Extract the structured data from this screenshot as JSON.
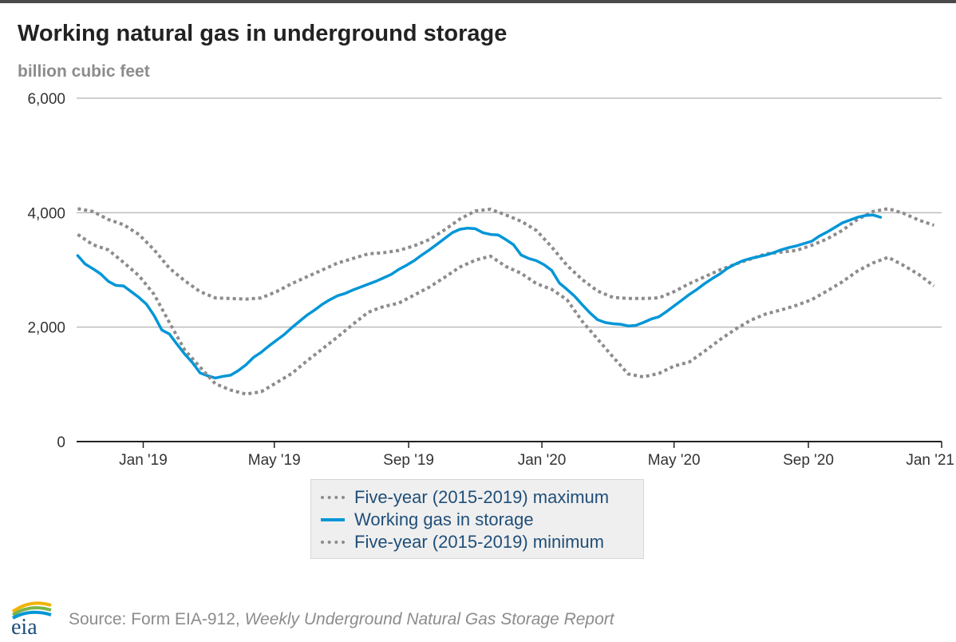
{
  "title": "Working natural gas in underground storage",
  "subtitle": "billion cubic feet",
  "legend": {
    "max_label": "Five-year (2015-2019) maximum",
    "working_label": "Working gas in storage",
    "min_label": "Five-year (2015-2019) minimum"
  },
  "source": {
    "prefix": "Source: Form EIA-912, ",
    "report": "Weekly Underground Natural Gas Storage Report"
  },
  "colors": {
    "working": "#0096d7",
    "range": "#8c8c8c",
    "grid": "#bdbdbd",
    "axis": "#222222"
  },
  "chart_data": {
    "type": "line",
    "title": "Working natural gas in underground storage",
    "ylabel": "billion cubic feet",
    "xlabel": "",
    "ylim": [
      0,
      6000
    ],
    "xlim": [
      "2018-11-01",
      "2021-01-01"
    ],
    "y_ticks": [
      0,
      2000,
      4000,
      6000
    ],
    "y_tick_labels": [
      "0",
      "2,000",
      "4,000",
      "6,000"
    ],
    "x_ticks": [
      "2019-01-01",
      "2019-05-01",
      "2019-09-01",
      "2020-01-01",
      "2020-05-01",
      "2020-09-01",
      "2021-01-01"
    ],
    "x_tick_labels": [
      "Jan '19",
      "May '19",
      "Sep '19",
      "Jan '20",
      "May '20",
      "Sep '20",
      "Jan '21"
    ],
    "grid": "horizontal",
    "legend_position": "bottom-center",
    "series": [
      {
        "name": "Five-year (2015-2019) maximum",
        "style": "dotted",
        "points": [
          [
            "2018-11-02",
            4070
          ],
          [
            "2018-11-16",
            4020
          ],
          [
            "2018-11-30",
            3880
          ],
          [
            "2018-12-14",
            3790
          ],
          [
            "2018-12-28",
            3620
          ],
          [
            "2019-01-11",
            3350
          ],
          [
            "2019-01-25",
            3030
          ],
          [
            "2019-02-08",
            2810
          ],
          [
            "2019-02-22",
            2620
          ],
          [
            "2019-03-08",
            2510
          ],
          [
            "2019-03-22",
            2500
          ],
          [
            "2019-04-05",
            2490
          ],
          [
            "2019-04-19",
            2510
          ],
          [
            "2019-05-03",
            2620
          ],
          [
            "2019-05-17",
            2760
          ],
          [
            "2019-05-31",
            2880
          ],
          [
            "2019-06-14",
            3000
          ],
          [
            "2019-06-28",
            3120
          ],
          [
            "2019-07-12",
            3200
          ],
          [
            "2019-07-26",
            3280
          ],
          [
            "2019-08-09",
            3300
          ],
          [
            "2019-08-23",
            3340
          ],
          [
            "2019-09-06",
            3420
          ],
          [
            "2019-09-20",
            3530
          ],
          [
            "2019-10-04",
            3700
          ],
          [
            "2019-10-18",
            3890
          ],
          [
            "2019-11-01",
            4030
          ],
          [
            "2019-11-15",
            4060
          ],
          [
            "2019-11-29",
            3960
          ],
          [
            "2019-12-13",
            3850
          ],
          [
            "2019-12-27",
            3690
          ],
          [
            "2020-01-10",
            3400
          ],
          [
            "2020-01-24",
            3080
          ],
          [
            "2020-02-07",
            2830
          ],
          [
            "2020-02-21",
            2630
          ],
          [
            "2020-03-06",
            2520
          ],
          [
            "2020-03-20",
            2500
          ],
          [
            "2020-04-03",
            2500
          ],
          [
            "2020-04-17",
            2510
          ],
          [
            "2020-05-01",
            2620
          ],
          [
            "2020-05-15",
            2760
          ],
          [
            "2020-05-29",
            2880
          ],
          [
            "2020-06-12",
            3000
          ],
          [
            "2020-06-26",
            3100
          ],
          [
            "2020-07-10",
            3190
          ],
          [
            "2020-07-24",
            3280
          ],
          [
            "2020-08-07",
            3310
          ],
          [
            "2020-08-21",
            3340
          ],
          [
            "2020-09-04",
            3430
          ],
          [
            "2020-09-18",
            3540
          ],
          [
            "2020-10-02",
            3690
          ],
          [
            "2020-10-16",
            3880
          ],
          [
            "2020-10-30",
            4020
          ],
          [
            "2020-11-13",
            4070
          ],
          [
            "2020-11-27",
            3990
          ],
          [
            "2020-12-11",
            3870
          ],
          [
            "2020-12-25",
            3780
          ]
        ]
      },
      {
        "name": "Working gas in storage",
        "style": "solid",
        "points": [
          [
            "2018-11-02",
            3250
          ],
          [
            "2018-11-09",
            3100
          ],
          [
            "2018-11-16",
            3020
          ],
          [
            "2018-11-23",
            2930
          ],
          [
            "2018-11-30",
            2800
          ],
          [
            "2018-12-07",
            2730
          ],
          [
            "2018-12-14",
            2720
          ],
          [
            "2018-12-21",
            2620
          ],
          [
            "2018-12-28",
            2520
          ],
          [
            "2019-01-04",
            2400
          ],
          [
            "2019-01-11",
            2200
          ],
          [
            "2019-01-18",
            1950
          ],
          [
            "2019-01-25",
            1880
          ],
          [
            "2019-02-01",
            1700
          ],
          [
            "2019-02-08",
            1530
          ],
          [
            "2019-02-15",
            1380
          ],
          [
            "2019-02-22",
            1200
          ],
          [
            "2019-03-01",
            1150
          ],
          [
            "2019-03-08",
            1110
          ],
          [
            "2019-03-15",
            1140
          ],
          [
            "2019-03-22",
            1160
          ],
          [
            "2019-03-29",
            1240
          ],
          [
            "2019-04-05",
            1340
          ],
          [
            "2019-04-12",
            1470
          ],
          [
            "2019-04-19",
            1560
          ],
          [
            "2019-04-26",
            1670
          ],
          [
            "2019-05-03",
            1770
          ],
          [
            "2019-05-10",
            1870
          ],
          [
            "2019-05-17",
            1990
          ],
          [
            "2019-05-24",
            2100
          ],
          [
            "2019-05-31",
            2210
          ],
          [
            "2019-06-07",
            2300
          ],
          [
            "2019-06-14",
            2400
          ],
          [
            "2019-06-21",
            2480
          ],
          [
            "2019-06-28",
            2550
          ],
          [
            "2019-07-05",
            2590
          ],
          [
            "2019-07-12",
            2650
          ],
          [
            "2019-07-19",
            2700
          ],
          [
            "2019-07-26",
            2750
          ],
          [
            "2019-08-02",
            2800
          ],
          [
            "2019-08-09",
            2860
          ],
          [
            "2019-08-16",
            2920
          ],
          [
            "2019-08-23",
            3010
          ],
          [
            "2019-08-30",
            3080
          ],
          [
            "2019-09-06",
            3160
          ],
          [
            "2019-09-13",
            3260
          ],
          [
            "2019-09-20",
            3350
          ],
          [
            "2019-09-27",
            3450
          ],
          [
            "2019-10-04",
            3550
          ],
          [
            "2019-10-11",
            3650
          ],
          [
            "2019-10-18",
            3710
          ],
          [
            "2019-10-25",
            3730
          ],
          [
            "2019-11-01",
            3720
          ],
          [
            "2019-11-08",
            3650
          ],
          [
            "2019-11-15",
            3620
          ],
          [
            "2019-11-22",
            3610
          ],
          [
            "2019-11-29",
            3530
          ],
          [
            "2019-12-06",
            3440
          ],
          [
            "2019-12-13",
            3260
          ],
          [
            "2019-12-20",
            3200
          ],
          [
            "2019-12-27",
            3160
          ],
          [
            "2020-01-03",
            3090
          ],
          [
            "2020-01-10",
            2990
          ],
          [
            "2020-01-17",
            2770
          ],
          [
            "2020-01-24",
            2660
          ],
          [
            "2020-01-31",
            2540
          ],
          [
            "2020-02-07",
            2390
          ],
          [
            "2020-02-14",
            2250
          ],
          [
            "2020-02-21",
            2130
          ],
          [
            "2020-02-28",
            2080
          ],
          [
            "2020-03-06",
            2060
          ],
          [
            "2020-03-13",
            2050
          ],
          [
            "2020-03-20",
            2020
          ],
          [
            "2020-03-27",
            2030
          ],
          [
            "2020-04-03",
            2080
          ],
          [
            "2020-04-10",
            2140
          ],
          [
            "2020-04-17",
            2180
          ],
          [
            "2020-04-24",
            2270
          ],
          [
            "2020-05-01",
            2370
          ],
          [
            "2020-05-08",
            2470
          ],
          [
            "2020-05-15",
            2570
          ],
          [
            "2020-05-22",
            2660
          ],
          [
            "2020-05-29",
            2760
          ],
          [
            "2020-06-05",
            2850
          ],
          [
            "2020-06-12",
            2930
          ],
          [
            "2020-06-19",
            3030
          ],
          [
            "2020-06-26",
            3100
          ],
          [
            "2020-07-03",
            3160
          ],
          [
            "2020-07-10",
            3200
          ],
          [
            "2020-07-17",
            3230
          ],
          [
            "2020-07-24",
            3260
          ],
          [
            "2020-07-31",
            3300
          ],
          [
            "2020-08-07",
            3350
          ],
          [
            "2020-08-14",
            3390
          ],
          [
            "2020-08-21",
            3420
          ],
          [
            "2020-08-28",
            3460
          ],
          [
            "2020-09-04",
            3500
          ],
          [
            "2020-09-11",
            3590
          ],
          [
            "2020-09-18",
            3660
          ],
          [
            "2020-09-25",
            3740
          ],
          [
            "2020-10-02",
            3820
          ],
          [
            "2020-10-09",
            3870
          ],
          [
            "2020-10-16",
            3920
          ],
          [
            "2020-10-23",
            3950
          ],
          [
            "2020-10-30",
            3960
          ],
          [
            "2020-11-06",
            3920
          ]
        ]
      },
      {
        "name": "Five-year (2015-2019) minimum",
        "style": "dotted",
        "points": [
          [
            "2018-11-02",
            3620
          ],
          [
            "2018-11-16",
            3440
          ],
          [
            "2018-11-30",
            3350
          ],
          [
            "2018-12-14",
            3130
          ],
          [
            "2018-12-28",
            2900
          ],
          [
            "2019-01-11",
            2570
          ],
          [
            "2019-01-25",
            2080
          ],
          [
            "2019-02-08",
            1600
          ],
          [
            "2019-02-22",
            1300
          ],
          [
            "2019-03-08",
            1010
          ],
          [
            "2019-03-22",
            900
          ],
          [
            "2019-04-05",
            830
          ],
          [
            "2019-04-19",
            870
          ],
          [
            "2019-05-03",
            1030
          ],
          [
            "2019-05-17",
            1190
          ],
          [
            "2019-05-31",
            1410
          ],
          [
            "2019-06-14",
            1620
          ],
          [
            "2019-06-28",
            1830
          ],
          [
            "2019-07-12",
            2050
          ],
          [
            "2019-07-26",
            2260
          ],
          [
            "2019-08-09",
            2360
          ],
          [
            "2019-08-23",
            2420
          ],
          [
            "2019-09-06",
            2560
          ],
          [
            "2019-09-20",
            2700
          ],
          [
            "2019-10-04",
            2870
          ],
          [
            "2019-10-18",
            3050
          ],
          [
            "2019-11-01",
            3170
          ],
          [
            "2019-11-15",
            3240
          ],
          [
            "2019-11-29",
            3060
          ],
          [
            "2019-12-13",
            2940
          ],
          [
            "2019-12-27",
            2760
          ],
          [
            "2020-01-10",
            2660
          ],
          [
            "2020-01-24",
            2480
          ],
          [
            "2020-02-07",
            2100
          ],
          [
            "2020-02-21",
            1790
          ],
          [
            "2020-03-06",
            1480
          ],
          [
            "2020-03-20",
            1180
          ],
          [
            "2020-04-03",
            1130
          ],
          [
            "2020-04-17",
            1190
          ],
          [
            "2020-05-01",
            1320
          ],
          [
            "2020-05-15",
            1390
          ],
          [
            "2020-05-29",
            1580
          ],
          [
            "2020-06-12",
            1780
          ],
          [
            "2020-06-26",
            1960
          ],
          [
            "2020-07-10",
            2120
          ],
          [
            "2020-07-24",
            2230
          ],
          [
            "2020-08-07",
            2300
          ],
          [
            "2020-08-21",
            2380
          ],
          [
            "2020-09-04",
            2480
          ],
          [
            "2020-09-18",
            2630
          ],
          [
            "2020-10-02",
            2790
          ],
          [
            "2020-10-16",
            2980
          ],
          [
            "2020-10-30",
            3120
          ],
          [
            "2020-11-13",
            3220
          ],
          [
            "2020-11-27",
            3080
          ],
          [
            "2020-12-11",
            2920
          ],
          [
            "2020-12-25",
            2720
          ]
        ]
      }
    ]
  }
}
